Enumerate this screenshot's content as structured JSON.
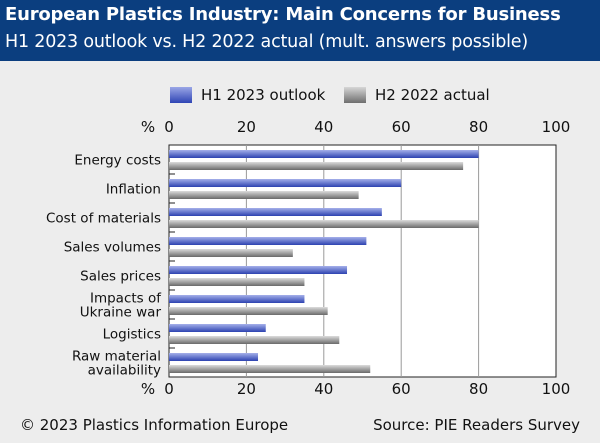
{
  "header": {
    "title": "European Plastics Industry: Main Concerns for Business",
    "subtitle": "H1 2023 outlook vs. H2 2022 actual (mult. answers possible)"
  },
  "legend": [
    {
      "label": "H1 2023 outlook",
      "color": "#4b5fc2"
    },
    {
      "label": "H2 2022 actual",
      "color": "#8c8c8c"
    }
  ],
  "footer": {
    "copyright": "© 2023 Plastics Information Europe",
    "source": "Source: PIE Readers Survey"
  },
  "chart_data": {
    "type": "bar",
    "orientation": "horizontal",
    "unit_label": "%",
    "categories": [
      [
        "Energy costs"
      ],
      [
        "Inflation"
      ],
      [
        "Cost of materials"
      ],
      [
        "Sales volumes"
      ],
      [
        "Sales prices"
      ],
      [
        "Impacts of",
        "Ukraine war"
      ],
      [
        "Logistics"
      ],
      [
        "Raw material",
        "availability"
      ]
    ],
    "series": [
      {
        "name": "H1 2023 outlook",
        "values": [
          80,
          60,
          55,
          51,
          46,
          35,
          25,
          23
        ]
      },
      {
        "name": "H2 2022 actual",
        "values": [
          76,
          49,
          80,
          32,
          35,
          41,
          44,
          52
        ]
      }
    ],
    "xlim": [
      0,
      100
    ],
    "xticks": [
      0,
      20,
      40,
      60,
      80,
      100
    ],
    "grid": true
  }
}
